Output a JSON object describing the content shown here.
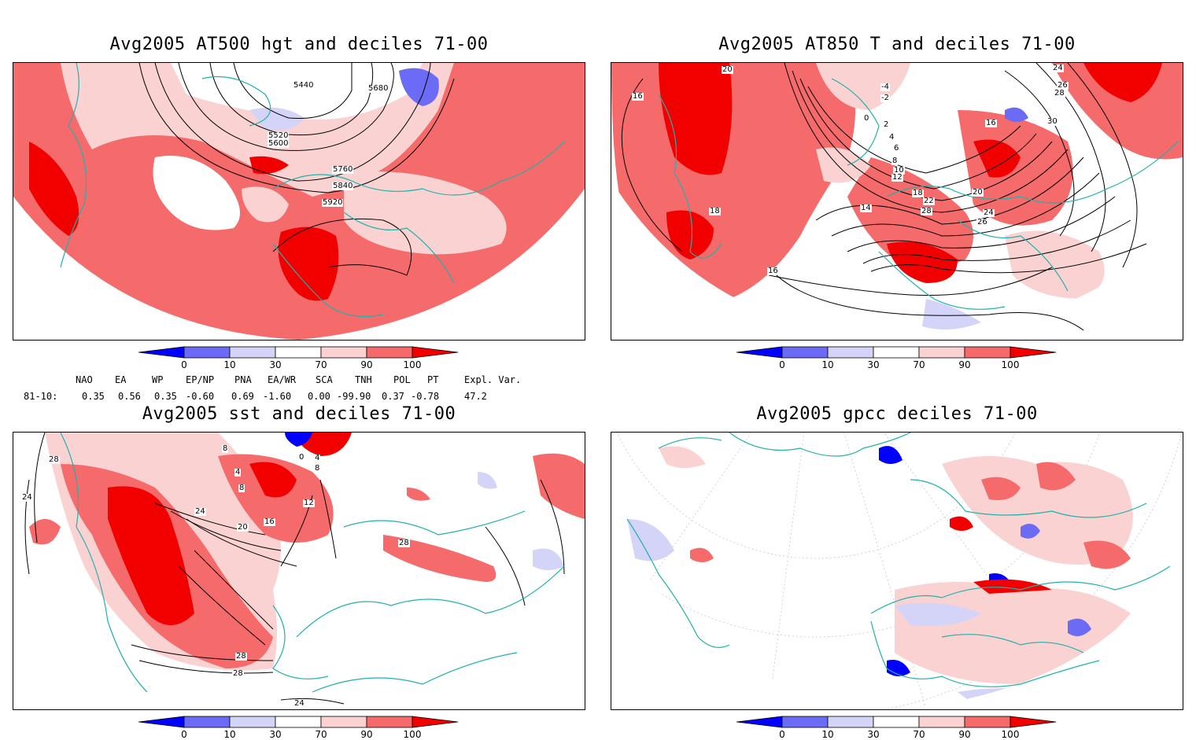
{
  "panels": [
    {
      "title": "Avg2005 AT500 hgt and deciles 71-00",
      "contour_labels": [
        "5440",
        "5680",
        "5520",
        "5600",
        "5760",
        "5840",
        "5920"
      ]
    },
    {
      "title": "Avg2005 AT850 T and deciles 71-00",
      "contour_labels": [
        "20",
        "16",
        "-4",
        "-2",
        "0",
        "2",
        "4",
        "6",
        "8",
        "10",
        "12",
        "14",
        "16",
        "18",
        "20",
        "22",
        "24",
        "26",
        "28",
        "30",
        "24",
        "26",
        "28",
        "18",
        "16"
      ]
    },
    {
      "title": "Avg2005 sst and deciles 71-00",
      "contour_labels": [
        "28",
        "24",
        "8",
        "4",
        "0",
        "4",
        "8",
        "8",
        "12",
        "16",
        "20",
        "24",
        "28",
        "28",
        "28",
        "24"
      ]
    },
    {
      "title": "Avg2005 gpcc deciles 71-00",
      "contour_labels": []
    }
  ],
  "colorbar": {
    "ticks": [
      "0",
      "10",
      "30",
      "70",
      "90",
      "100"
    ],
    "colors": [
      "#0000ff",
      "#6b6bf5",
      "#d4d4f8",
      "#ffffff",
      "#fbd2d2",
      "#f56a6a",
      "#f20000"
    ]
  },
  "indices": {
    "header": [
      "NAO",
      "EA",
      "WP",
      "EP/NP",
      "PNA",
      "EA/WR",
      "SCA",
      "TNH",
      "POL",
      "PT",
      "Expl. Var."
    ],
    "row_label": "81-10:",
    "values": [
      "0.35",
      "0.56",
      "0.35",
      "-0.60",
      "0.69",
      "-1.60",
      "0.00",
      "-99.90",
      "0.37",
      "-0.78",
      "47.2"
    ]
  },
  "colors": {
    "coast": "#20b2aa",
    "frame": "#000000",
    "contour": "#000000"
  }
}
